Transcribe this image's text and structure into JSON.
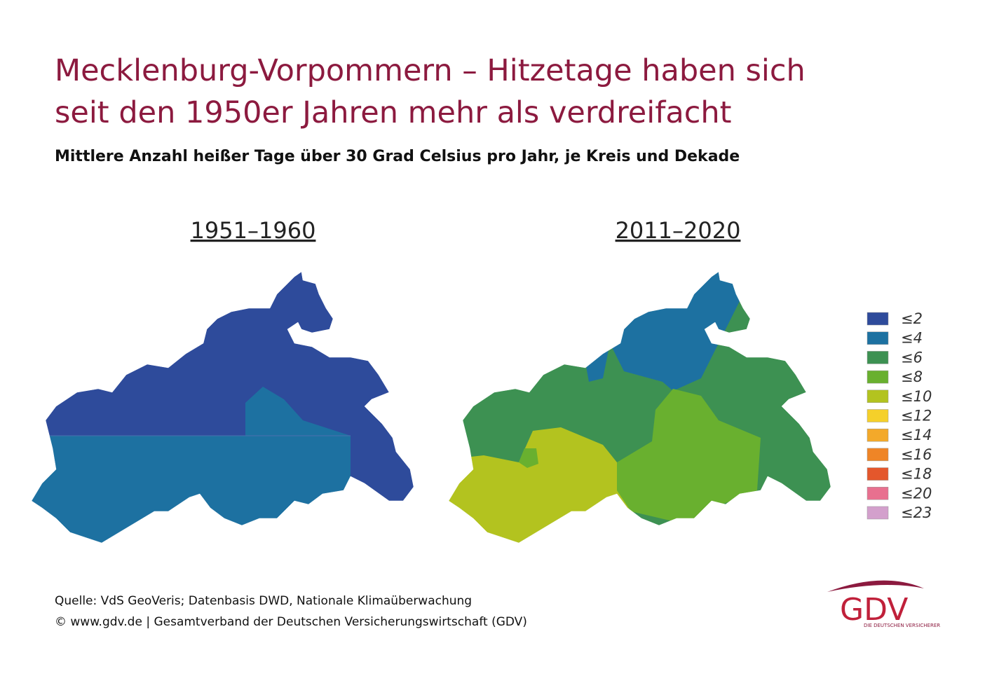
{
  "title_lines": [
    "Mecklenburg-Vorpommern – Hitzetage haben sich",
    "seit den 1950er Jahren mehr als verdreifacht"
  ],
  "subtitle": "Mittlere Anzahl heißer Tage über 30 Grad Celsius pro Jahr, je Kreis und Dekade",
  "maps": [
    {
      "title": "1951–1960"
    },
    {
      "title": "2011–2020"
    }
  ],
  "legend": [
    {
      "label": "≤2",
      "color": "#2e4b9b"
    },
    {
      "label": "≤4",
      "color": "#1d71a1"
    },
    {
      "label": "≤6",
      "color": "#3d9152"
    },
    {
      "label": "≤8",
      "color": "#69b02f"
    },
    {
      "label": "≤10",
      "color": "#b3c31f"
    },
    {
      "label": "≤12",
      "color": "#f5d02a"
    },
    {
      "label": "≤14",
      "color": "#f3a92a"
    },
    {
      "label": "≤16",
      "color": "#ef8526"
    },
    {
      "label": "≤18",
      "color": "#e4572c"
    },
    {
      "label": "≤20",
      "color": "#e8708f"
    },
    {
      "label": "≤23",
      "color": "#d3a0cc"
    }
  ],
  "source": [
    "Quelle: VdS GeoVeris; Datenbasis DWD, Nationale Klimaüberwachung",
    "© www.gdv.de | Gesamtverband der Deutschen Versicherungswirtschaft (GDV)"
  ],
  "logo": {
    "name": "GDV",
    "tagline": "DIE DEUTSCHEN VERSICHERER"
  }
}
